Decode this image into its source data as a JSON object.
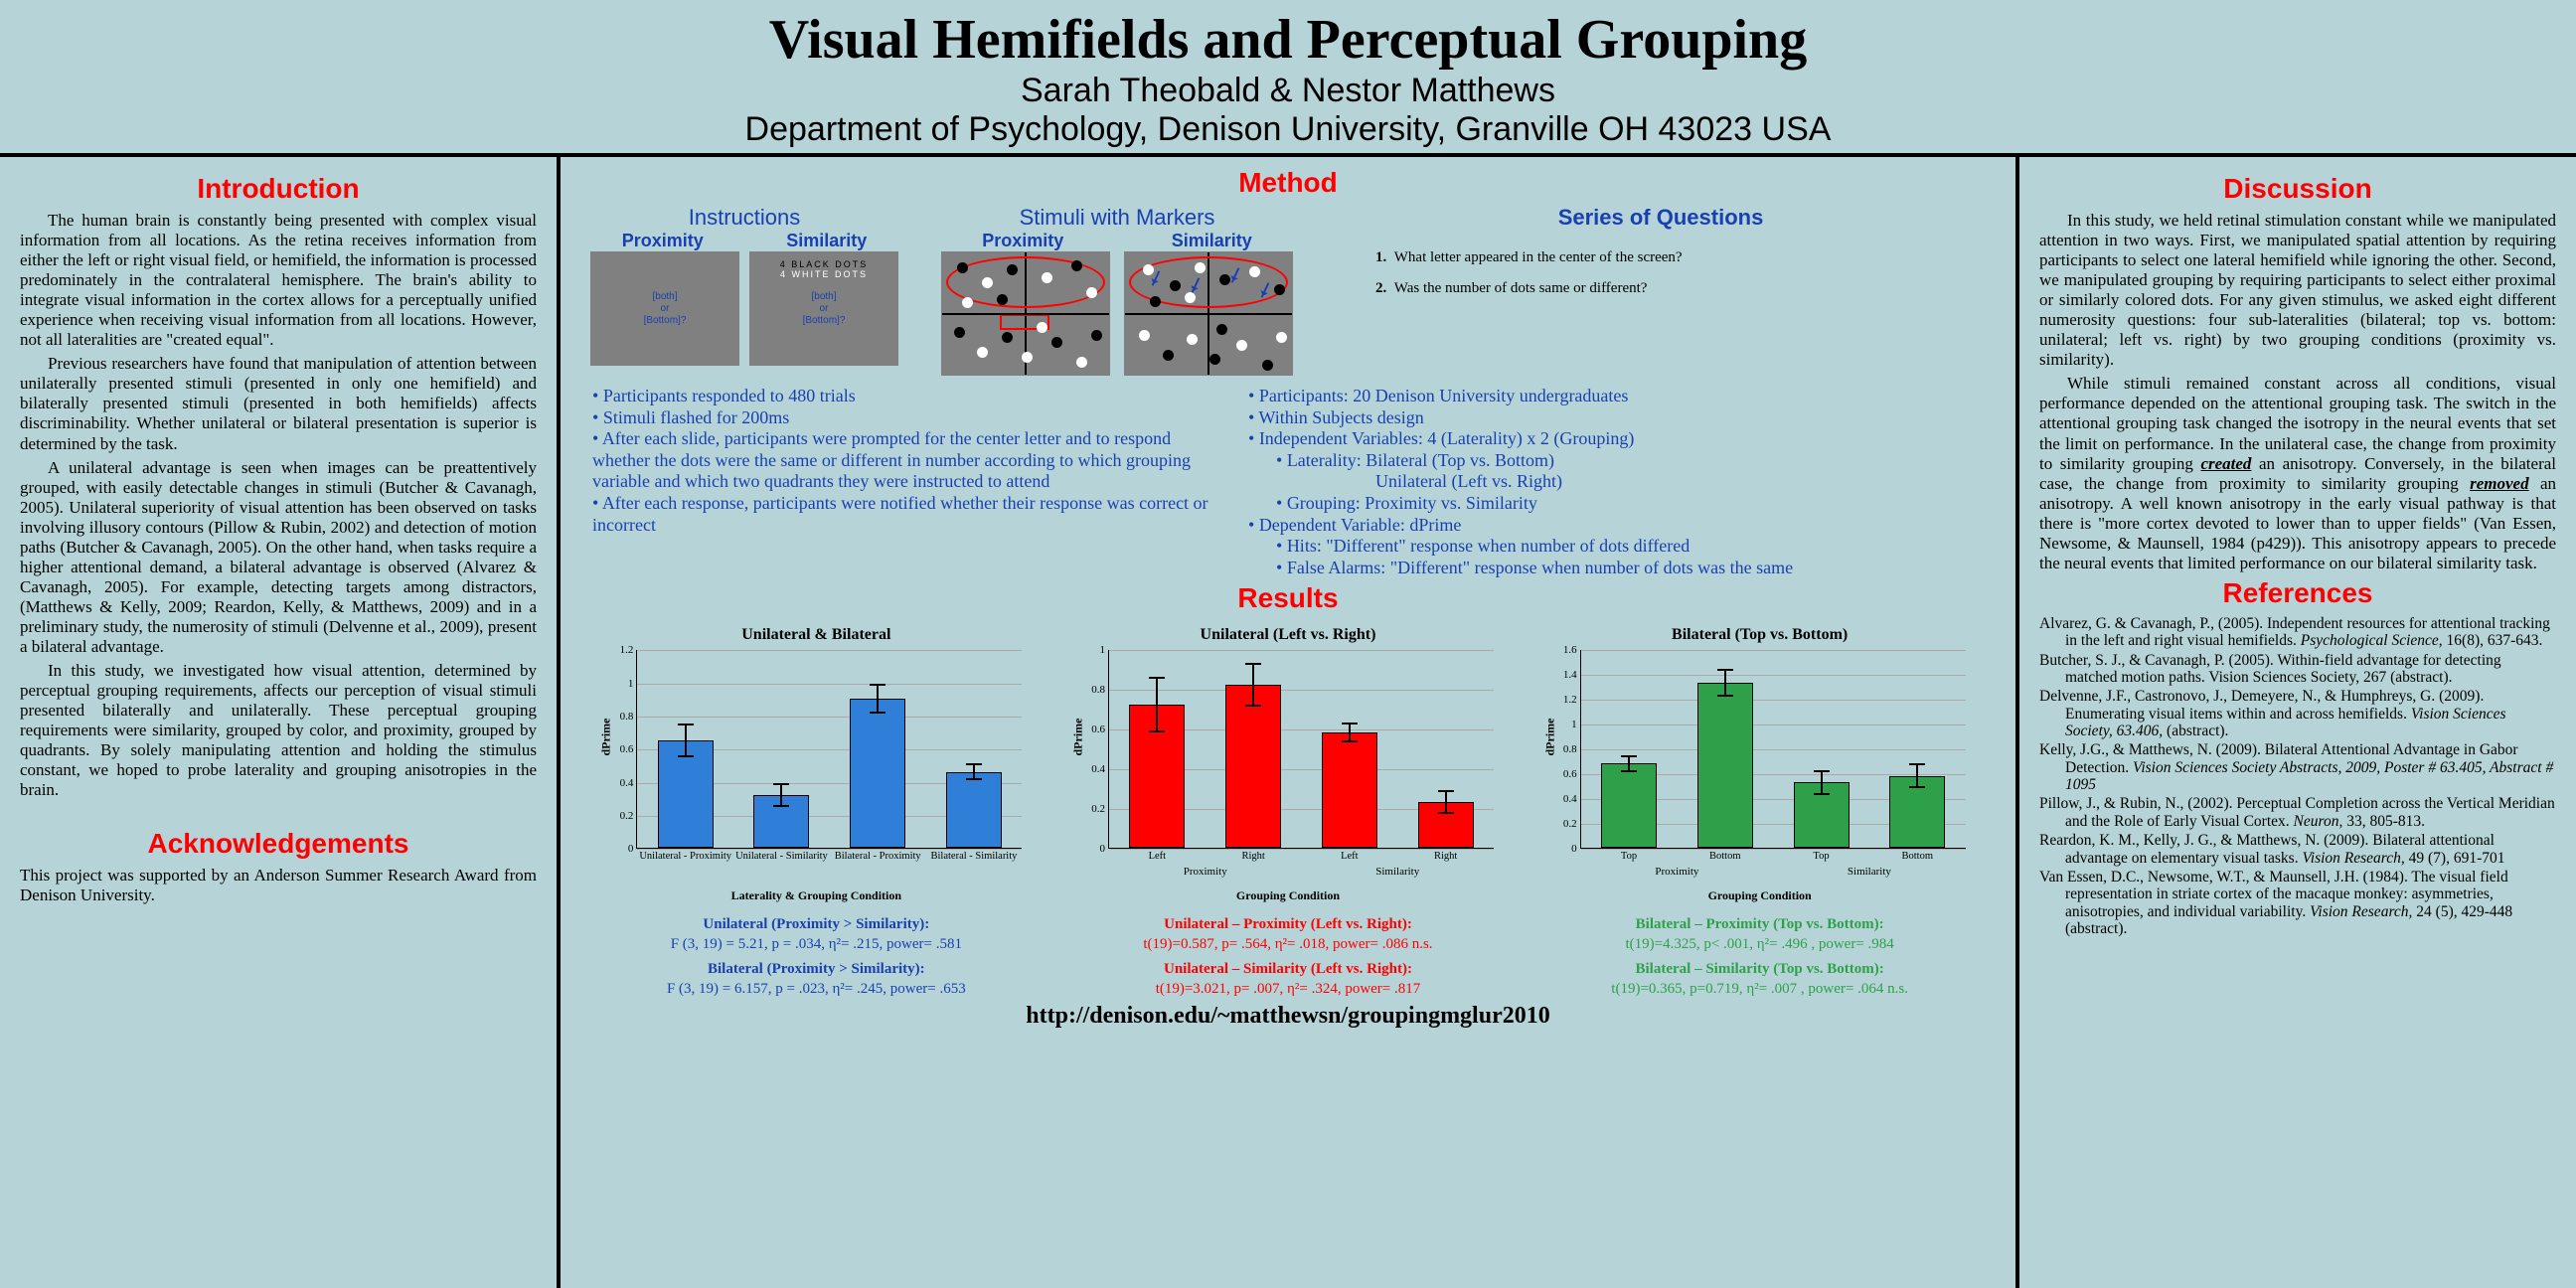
{
  "header": {
    "title": "Visual Hemifields and Perceptual Grouping",
    "authors": "Sarah Theobald & Nestor Matthews",
    "dept": "Department of Psychology, Denison University, Granville OH 43023 USA"
  },
  "url": "http://denison.edu/~matthewsn/groupingmglur2010",
  "left": {
    "intro_title": "Introduction",
    "para1": "The human brain is constantly being presented with complex visual information from all locations. As the retina receives information from either the left or right visual field, or hemifield, the information is processed predominately in the contralateral hemisphere. The brain's ability to integrate visual information in the cortex allows for a perceptually unified experience when receiving visual information from all locations. However, not all lateralities are \"created equal\".",
    "para2": "Previous researchers have found that manipulation of attention between unilaterally presented stimuli (presented in only one hemifield) and bilaterally presented stimuli (presented in both hemifields) affects discriminability. Whether unilateral or bilateral presentation is superior  is determined by the task.",
    "para3": "A unilateral advantage is seen when images can be preattentively grouped, with easily detectable changes in stimuli (Butcher & Cavanagh, 2005). Unilateral superiority  of visual attention has been observed on tasks involving illusory contours (Pillow & Rubin, 2002) and detection of motion paths (Butcher & Cavanagh, 2005). On the other hand, when tasks require a higher attentional demand, a bilateral advantage is observed (Alvarez & Cavanagh, 2005). For example, detecting targets among distractors, (Matthews & Kelly, 2009; Reardon, Kelly, & Matthews, 2009) and in a preliminary study, the numerosity of stimuli (Delvenne et al., 2009), present a bilateral advantage.",
    "para4": "In this study, we investigated how visual attention, determined by perceptual grouping requirements, affects our perception of visual stimuli presented bilaterally and unilaterally. These perceptual grouping requirements were similarity, grouped by color, and proximity, grouped by quadrants. By solely manipulating attention and holding the stimulus constant, we hoped to probe laterality and grouping anisotropies in the brain.",
    "ack_title": "Acknowledgements",
    "ack_text": "This project was supported by an Anderson Summer Research Award from Denison University."
  },
  "mid": {
    "method_title": "Method",
    "instructions_label": "Instructions",
    "stimuli_label": "Stimuli with Markers",
    "series_label": "Series of Questions",
    "proximity_label": "Proximity",
    "similarity_label": "Similarity",
    "q1": "What letter appeared in the center of the screen?",
    "q2": "Was the number of dots same or different?",
    "bullets_left": [
      "Participants responded to 480 trials",
      "Stimuli flashed for 200ms",
      "After each slide, participants were prompted for the center letter and to respond whether the dots were the same or different in number according to which grouping variable and which two quadrants they were instructed to attend",
      "After each response, participants were notified whether their response was correct or incorrect"
    ],
    "bullets_right": {
      "l1": "Participants: 20 Denison University undergraduates",
      "l2": "Within Subjects design",
      "l3": "Independent Variables: 4 (Laterality) x 2 (Grouping)",
      "l3a": "Laterality: Bilateral (Top vs. Bottom)",
      "l3b": "Unilateral  (Left vs. Right)",
      "l3c": "Grouping: Proximity vs. Similarity",
      "l4": "Dependent Variable: dPrime",
      "l4a": "Hits: \"Different\" response when number of dots differed",
      "l4b": "False Alarms: \"Different\" response when number of dots was the same"
    },
    "results_title": "Results",
    "chart1": {
      "title": "Unilateral & Bilateral",
      "type": "bar",
      "color": "#2f7ed8",
      "ymax": 1.2,
      "x_axis_label": "Laterality & Grouping Condition",
      "y_axis_label": "dPrime",
      "bars": [
        {
          "cat": "Unilateral - Proximity",
          "val": 0.65,
          "err": 0.1
        },
        {
          "cat": "Unilateral - Similarity",
          "val": 0.32,
          "err": 0.07
        },
        {
          "cat": "Bilateral - Proximity",
          "val": 0.9,
          "err": 0.09
        },
        {
          "cat": "Bilateral - Similarity",
          "val": 0.46,
          "err": 0.05
        }
      ],
      "stat1_hd": "Unilateral (Proximity > Similarity):",
      "stat1": "F (3, 19) = 5.21, p = .034, η²= .215, power= .581",
      "stat2_hd": "Bilateral (Proximity > Similarity):",
      "stat2": "F (3, 19) = 6.157, p = .023, η²= .245, power= .653",
      "stat_color": "#1a3fb0"
    },
    "chart2": {
      "title": "Unilateral (Left vs. Right)",
      "type": "bar",
      "color": "#ff0000",
      "ymax": 1.0,
      "x_axis_label": "Grouping Condition",
      "y_axis_label": "dPrime",
      "groups": [
        "Proximity",
        "Similarity"
      ],
      "bars": [
        {
          "cat": "Left",
          "val": 0.72,
          "err": 0.14
        },
        {
          "cat": "Right",
          "val": 0.82,
          "err": 0.11
        },
        {
          "cat": "Left",
          "val": 0.58,
          "err": 0.05
        },
        {
          "cat": "Right",
          "val": 0.23,
          "err": 0.06
        }
      ],
      "stat1_hd": "Unilateral – Proximity (Left vs. Right):",
      "stat1": "t(19)=0.587, p= .564, η²= .018, power= .086 n.s.",
      "stat2_hd": "Unilateral – Similarity (Left vs. Right):",
      "stat2": "t(19)=3.021, p= .007, η²= .324, power= .817",
      "stat_color": "#ff0000"
    },
    "chart3": {
      "title": "Bilateral (Top vs. Bottom)",
      "type": "bar",
      "color": "#2ea049",
      "ymax": 1.6,
      "x_axis_label": "Grouping Condition",
      "y_axis_label": "dPrime",
      "groups": [
        "Proximity",
        "Similarity"
      ],
      "bars": [
        {
          "cat": "Top",
          "val": 0.68,
          "err": 0.07
        },
        {
          "cat": "Bottom",
          "val": 1.33,
          "err": 0.11
        },
        {
          "cat": "Top",
          "val": 0.53,
          "err": 0.1
        },
        {
          "cat": "Bottom",
          "val": 0.58,
          "err": 0.1
        }
      ],
      "stat1_hd": "Bilateral – Proximity (Top vs. Bottom):",
      "stat1": "t(19)=4.325, p< .001, η²= .496 , power= .984",
      "stat2_hd": "Bilateral – Similarity (Top vs. Bottom):",
      "stat2": "t(19)=0.365, p=0.719, η²= .007 , power= .064 n.s.",
      "stat_color": "#2ea049"
    }
  },
  "right": {
    "disc_title": "Discussion",
    "para1": "In this study, we held retinal stimulation constant while we manipulated attention in two ways. First, we manipulated spatial attention by requiring participants to select one lateral hemifield while ignoring the other. Second, we manipulated grouping by requiring participants to select either proximal or similarly colored dots. For any given stimulus, we asked eight different numerosity questions: four sub-lateralities (bilateral; top vs. bottom: unilateral; left vs. right) by two grouping conditions (proximity vs. similarity).",
    "para2a": "While stimuli remained constant across all conditions, visual performance depended on the attentional grouping task. The switch in the attentional grouping task changed the isotropy in the neural events that set the limit on performance. In the unilateral case, the change from proximity to similarity grouping ",
    "para2_kw1": "created",
    "para2b": " an anisotropy. Conversely, in the bilateral case, the change from proximity to similarity grouping ",
    "para2_kw2": "removed",
    "para2c": " an anisotropy. A well known anisotropy in the early visual pathway is that there is \"more cortex devoted to lower than to upper fields\" (Van Essen, Newsome, & Maunsell, 1984 (p429)). This anisotropy appears to precede the neural events that limited performance on our bilateral similarity task.",
    "refs_title": "References"
  }
}
